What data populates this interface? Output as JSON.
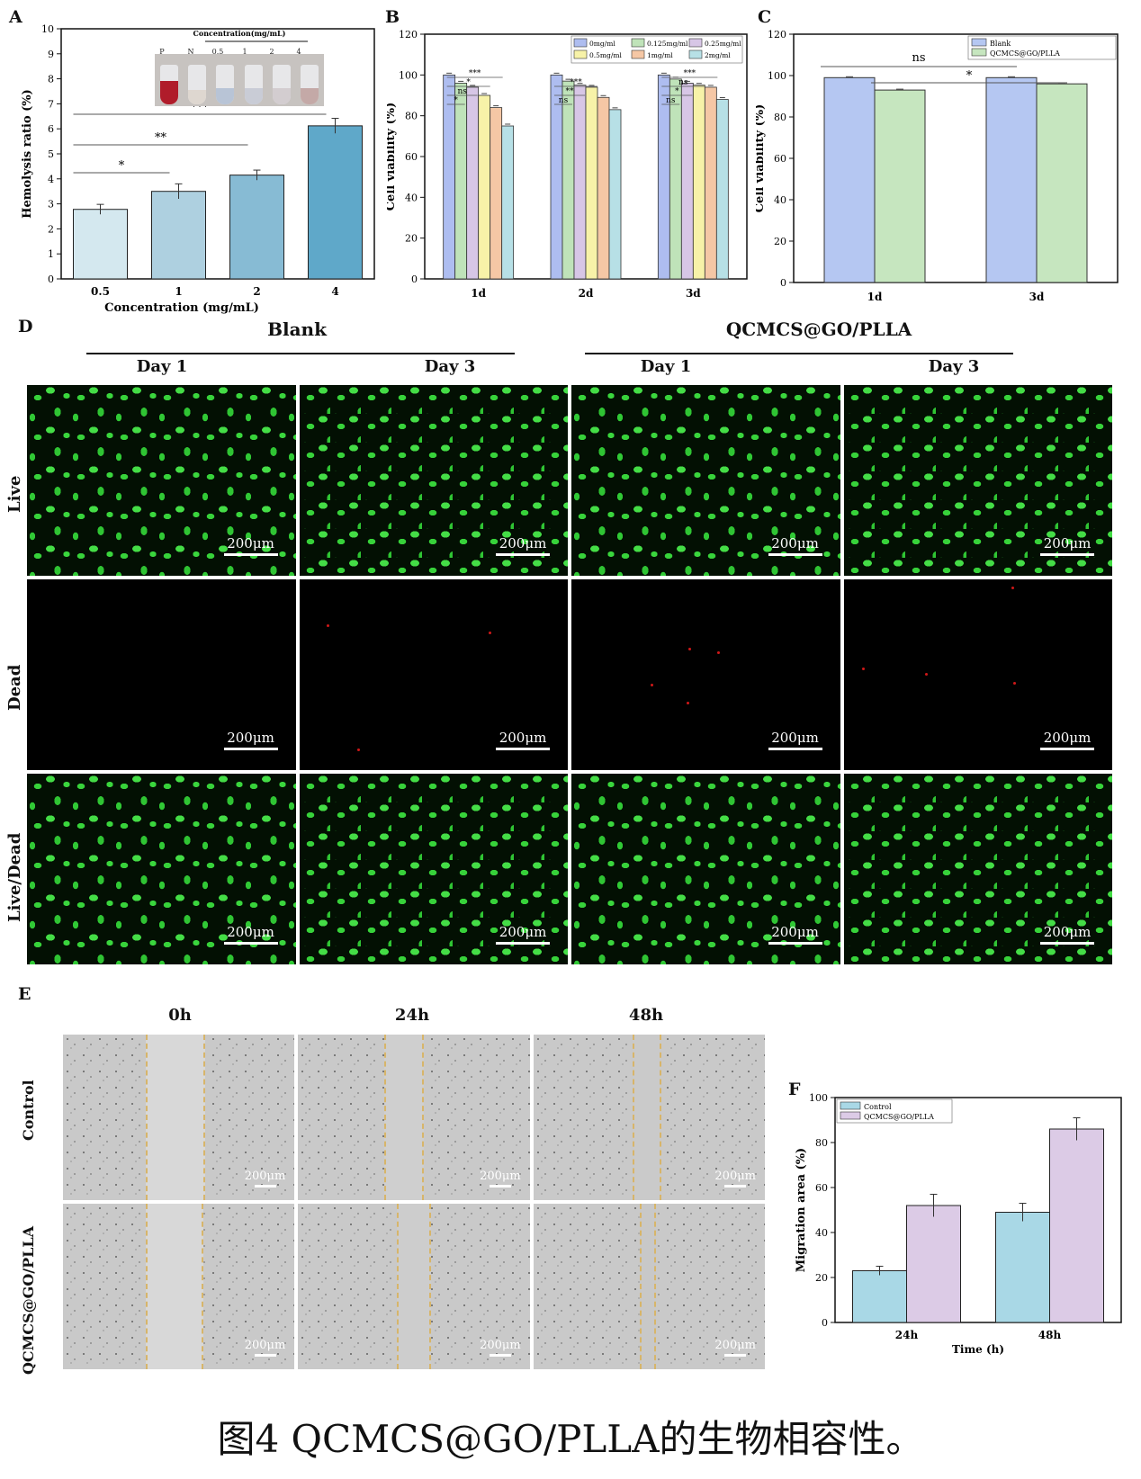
{
  "panels": {
    "A": "A",
    "B": "B",
    "C": "C",
    "D": "D",
    "E": "E",
    "F": "F"
  },
  "chart_a": {
    "type": "bar",
    "categories": [
      "0.5",
      "1",
      "2",
      "4"
    ],
    "values": [
      2.78,
      3.5,
      4.15,
      6.12
    ],
    "errors": [
      0.2,
      0.3,
      0.2,
      0.3
    ],
    "xlabel": "Concentration (mg/mL)",
    "ylabel": "Hemolysis ratio (%)",
    "ylim": [
      0,
      10
    ],
    "yticks": [
      "0",
      "1",
      "2",
      "3",
      "4",
      "5",
      "6",
      "7",
      "8",
      "9",
      "10"
    ],
    "colors": [
      "#d4e8ef",
      "#aed0e0",
      "#87bbd4",
      "#5fa8c9"
    ],
    "sig": [
      {
        "label": "*",
        "from": 0,
        "to": 1
      },
      {
        "label": "**",
        "from": 0,
        "to": 2
      },
      {
        "label": "***",
        "from": 0,
        "to": 3
      }
    ],
    "inset_title": "Concentration(mg/mL)",
    "inset_labels": [
      "P",
      "N",
      "0.5",
      "1",
      "2",
      "4"
    ]
  },
  "chart_b": {
    "type": "bar",
    "categories": [
      "1d",
      "2d",
      "3d"
    ],
    "series": [
      {
        "name": "0mg/ml",
        "color": "#aebdf0",
        "values": [
          100,
          100,
          100
        ]
      },
      {
        "name": "0.125mg/ml",
        "color": "#bfe3b9",
        "values": [
          96,
          97,
          98
        ]
      },
      {
        "name": "0.25mg/ml",
        "color": "#d7c6e6",
        "values": [
          94,
          95,
          96
        ]
      },
      {
        "name": "0.5mg/ml",
        "color": "#f7f2a8",
        "values": [
          90,
          94,
          95
        ]
      },
      {
        "name": "1mg/ml",
        "color": "#f5c7a5",
        "values": [
          84,
          89,
          94
        ]
      },
      {
        "name": "2mg/ml",
        "color": "#b7e0e6",
        "values": [
          75,
          83,
          88
        ]
      }
    ],
    "ylabel": "Cell viability (%)",
    "ylim": [
      0,
      120
    ],
    "yticks": [
      "0",
      "20",
      "40",
      "60",
      "80",
      "100",
      "120"
    ],
    "sig_groups": [
      [
        "*",
        "ns",
        "*",
        "***"
      ],
      [
        "ns",
        "**",
        "***"
      ],
      [
        "ns",
        "*",
        "ns",
        "***"
      ]
    ]
  },
  "chart_c": {
    "type": "bar",
    "categories": [
      "1d",
      "3d"
    ],
    "series": [
      {
        "name": "Blank",
        "color": "#b5c7f2",
        "values": [
          99,
          99
        ]
      },
      {
        "name": "QCMCS@GO/PLLA",
        "color": "#c6e6bf",
        "values": [
          93,
          96
        ]
      }
    ],
    "ylabel": "Cell viability (%)",
    "ylim": [
      0,
      120
    ],
    "yticks": [
      "0",
      "20",
      "40",
      "60",
      "80",
      "100",
      "120"
    ],
    "sig": [
      {
        "label": "ns"
      },
      {
        "label": "*"
      }
    ]
  },
  "panel_d": {
    "group_titles": [
      "Blank",
      "QCMCS@GO/PLLA"
    ],
    "day_labels": [
      "Day 1",
      "Day 3",
      "Day 1",
      "Day 3"
    ],
    "row_labels": [
      "Live",
      "Dead",
      "Live/Dead"
    ],
    "scale": "200μm"
  },
  "panel_e": {
    "time_labels": [
      "0h",
      "24h",
      "48h"
    ],
    "row_labels": [
      "Control",
      "QCMCS@GO/PLLA"
    ],
    "scale": "200μm"
  },
  "chart_f": {
    "type": "bar",
    "categories": [
      "24h",
      "48h"
    ],
    "series": [
      {
        "name": "Control",
        "color": "#a9d8e6",
        "values": [
          23,
          49
        ],
        "errors": [
          2,
          4
        ]
      },
      {
        "name": "QCMCS@GO/PLLA",
        "color": "#dccbe6",
        "values": [
          52,
          86
        ],
        "errors": [
          5,
          5
        ]
      }
    ],
    "xlabel": "Time (h)",
    "ylabel": "Migration area (%)",
    "ylim": [
      0,
      100
    ],
    "yticks": [
      "0",
      "20",
      "40",
      "60",
      "80",
      "100"
    ]
  },
  "caption": "图4 QCMCS@GO/PLLA的生物相容性。"
}
